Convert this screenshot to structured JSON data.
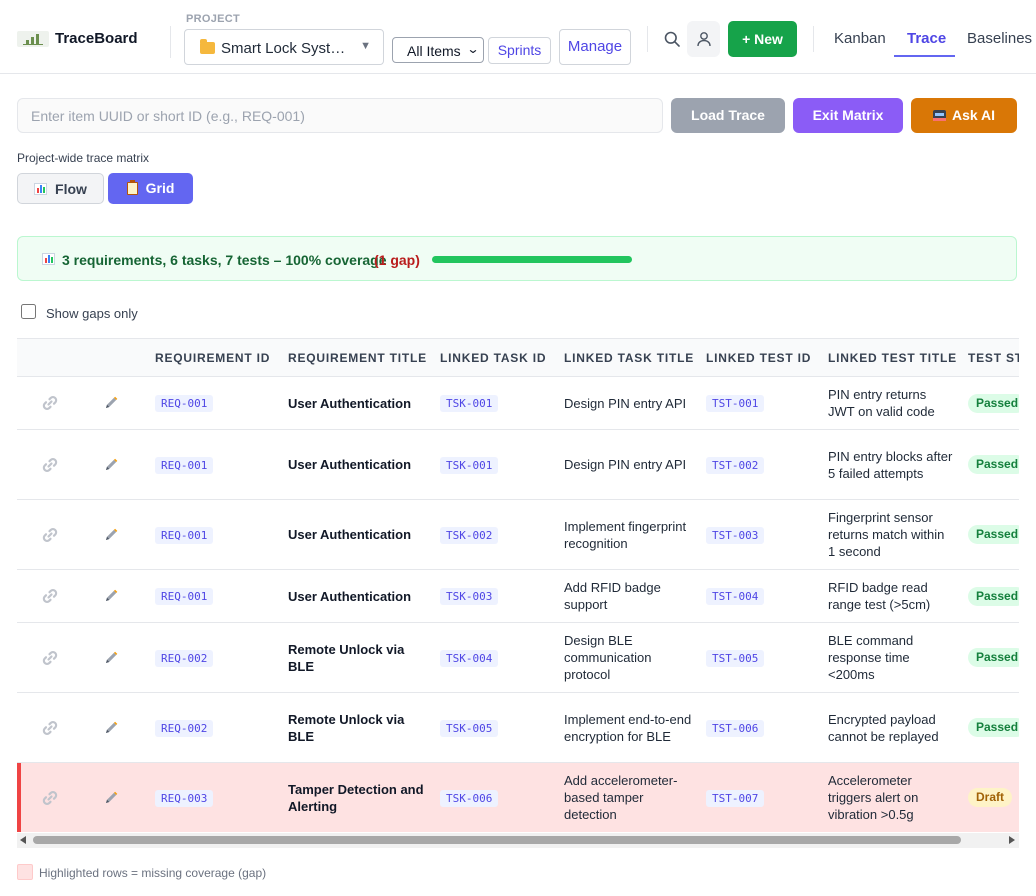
{
  "app": {
    "name": "TraceBoard"
  },
  "header": {
    "project_label": "PROJECT",
    "project_value": "Smart Lock System",
    "filter_value": "All Items",
    "sprints_label": "Sprints",
    "manage_label": "Manage",
    "new_label": "+ New",
    "tabs": [
      {
        "label": "Kanban",
        "active": false
      },
      {
        "label": "Trace",
        "active": true
      },
      {
        "label": "Baselines",
        "active": false
      }
    ]
  },
  "toolbar": {
    "input_placeholder": "Enter item UUID or short ID (e.g., REQ-001)",
    "input_value": "",
    "load_label": "Load Trace",
    "exit_label": "Exit Matrix",
    "ask_label": "Ask AI"
  },
  "view": {
    "caption": "Project-wide trace matrix",
    "flow_label": "Flow",
    "grid_label": "Grid",
    "active_view": "Grid"
  },
  "summary": {
    "text": "3 requirements, 6 tasks, 7 tests – 100% coverage",
    "gap_text": "(1 gap)",
    "coverage_percent": 100
  },
  "filter": {
    "show_gaps_label": "Show gaps only",
    "checked": false
  },
  "table": {
    "columns": [
      "",
      "",
      "REQUIREMENT ID",
      "REQUIREMENT TITLE",
      "LINKED TASK ID",
      "LINKED TASK TITLE",
      "LINKED TEST ID",
      "LINKED TEST TITLE",
      "TEST STATUS"
    ],
    "rows": [
      {
        "req_id": "REQ-001",
        "req_title": "User Authentication",
        "task_id": "TSK-001",
        "task_title": "Design PIN entry API",
        "test_id": "TST-001",
        "test_title": "PIN entry returns JWT on valid code",
        "status": "Passed",
        "gap": false
      },
      {
        "req_id": "REQ-001",
        "req_title": "User Authentication",
        "task_id": "TSK-001",
        "task_title": "Design PIN entry API",
        "test_id": "TST-002",
        "test_title": "PIN entry blocks after 5 failed attempts",
        "status": "Passed",
        "gap": false
      },
      {
        "req_id": "REQ-001",
        "req_title": "User Authentication",
        "task_id": "TSK-002",
        "task_title": "Implement fingerprint recognition",
        "test_id": "TST-003",
        "test_title": "Fingerprint sensor returns match within 1 second",
        "status": "Passed",
        "gap": false
      },
      {
        "req_id": "REQ-001",
        "req_title": "User Authentication",
        "task_id": "TSK-003",
        "task_title": "Add RFID badge support",
        "test_id": "TST-004",
        "test_title": "RFID badge read range test (>5cm)",
        "status": "Passed",
        "gap": false
      },
      {
        "req_id": "REQ-002",
        "req_title": "Remote Unlock via BLE",
        "task_id": "TSK-004",
        "task_title": "Design BLE communication protocol",
        "test_id": "TST-005",
        "test_title": "BLE command response time <200ms",
        "status": "Passed",
        "gap": false
      },
      {
        "req_id": "REQ-002",
        "req_title": "Remote Unlock via BLE",
        "task_id": "TSK-005",
        "task_title": "Implement end-to-end encryption for BLE",
        "test_id": "TST-006",
        "test_title": "Encrypted payload cannot be replayed",
        "status": "Passed",
        "gap": false
      },
      {
        "req_id": "REQ-003",
        "req_title": "Tamper Detection and Alerting",
        "task_id": "TSK-006",
        "task_title": "Add accelerometer-based tamper detection",
        "test_id": "TST-007",
        "test_title": "Accelerometer triggers alert on vibration >0.5g",
        "status": "Draft",
        "gap": true
      }
    ]
  },
  "legend": {
    "text": "Highlighted rows = missing coverage (gap)"
  },
  "colors": {
    "accent": "#6366f1",
    "new_button": "#16a34a",
    "exit_button": "#8b5cf6",
    "ask_button": "#d97706",
    "gap_row": "#fee2e2",
    "gap_marker": "#ef4444",
    "coverage_bar": "#22c55e"
  }
}
